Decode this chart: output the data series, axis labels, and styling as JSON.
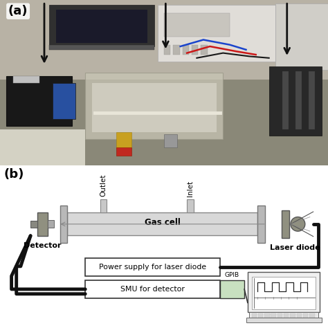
{
  "bg_color": "#ffffff",
  "panel_a_label": "(a)",
  "panel_b_label": "(b)",
  "gas_cell_label": "Gas cell",
  "outlet_label": "Outlet",
  "inlet_label": "Inlet",
  "detector_label": "Detector",
  "laser_diode_label": "Laser diode",
  "power_supply_label": "Power supply for laser diode",
  "smu_label": "SMU for detector",
  "gpib_label": "GPIB",
  "arrow_color": "#111111",
  "line_color": "#111111",
  "gas_cell_fill": "#d8d8d8",
  "endcap_fill": "#b8b8b8",
  "detector_fill": "#909080",
  "laser_fill": "#909080",
  "box_fill": "#ffffff",
  "gpib_fill": "#c8e0c0",
  "tube_outline": "#888888",
  "label_fontsize": 7.5,
  "bold_label_fontsize": 8,
  "photo_top_bg": "#c8c0b0",
  "photo_table": "#909888",
  "photo_equip_left_bg": "#d8d8d0",
  "photo_black_box": "#1c1c1c",
  "photo_blue_panel": "#3060a0",
  "photo_cell_acrylic": "#ccc8b8",
  "photo_right_dark": "#2a2a2a",
  "photo_white_right": "#d4d4d0",
  "photo_wire_blue": "#2244aa",
  "photo_wire_red": "#bb2222",
  "photo_wire_black": "#222222"
}
